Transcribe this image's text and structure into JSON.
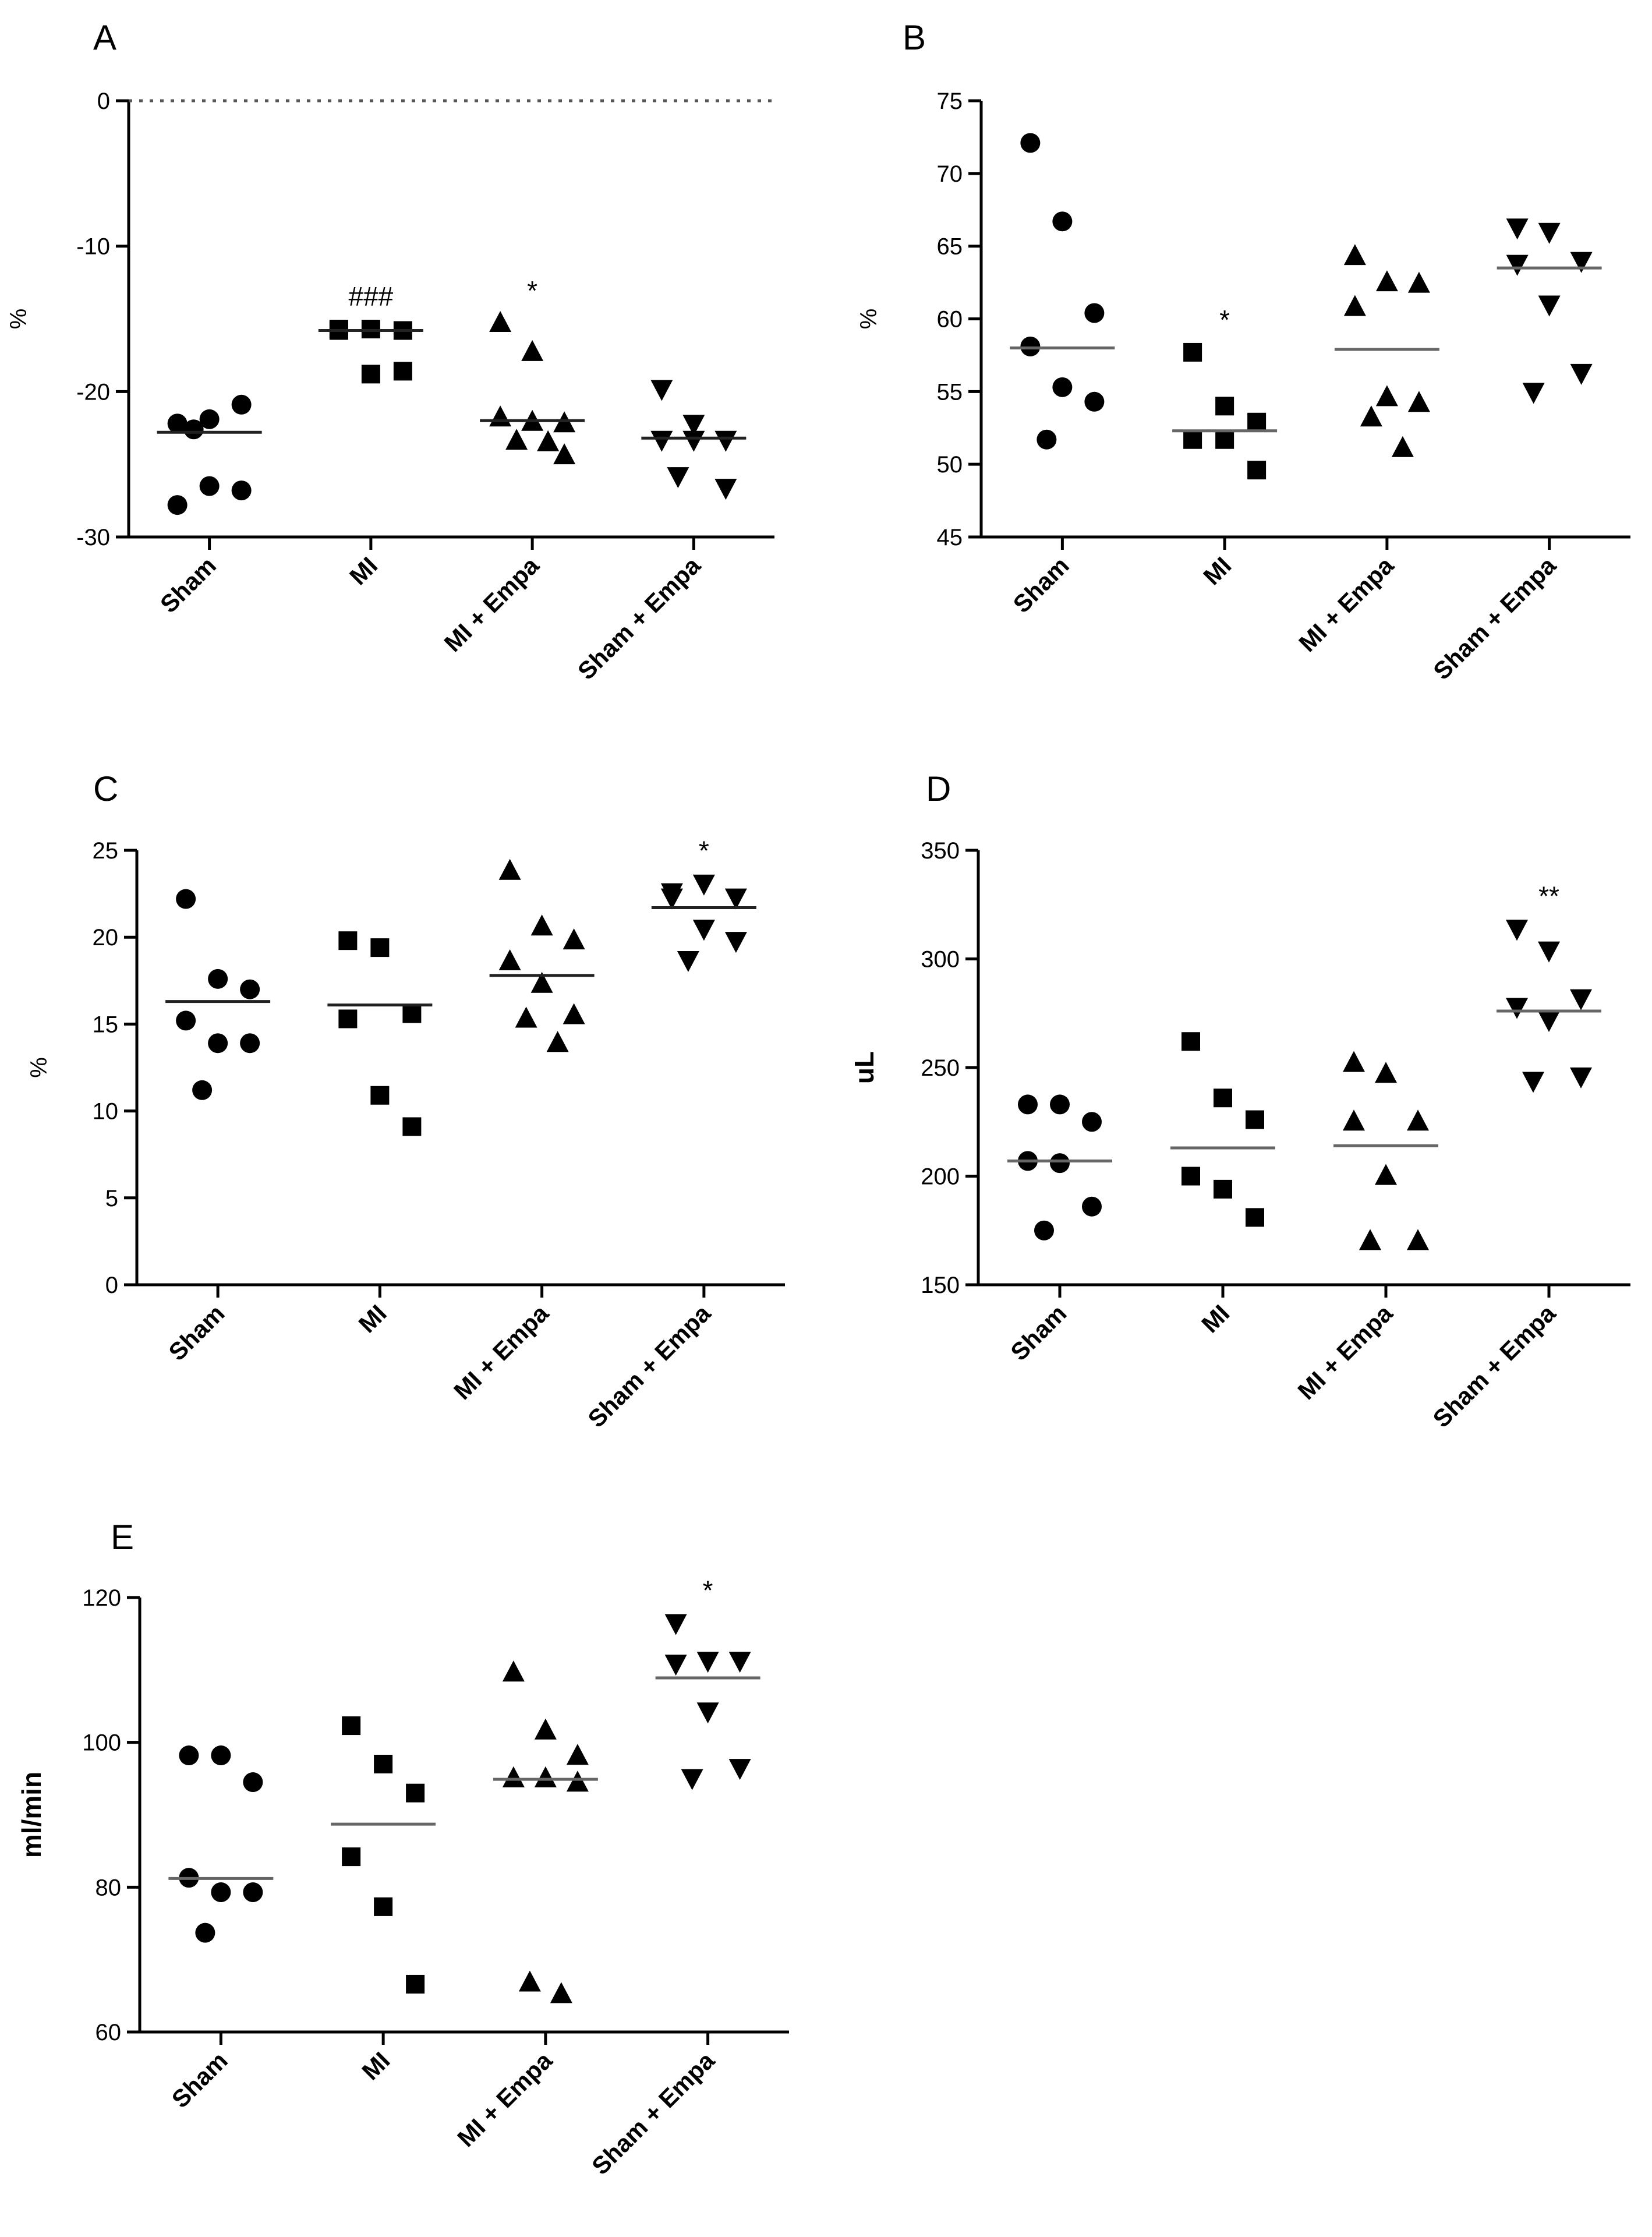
{
  "figure": {
    "categories": [
      "Sham",
      "MI",
      "MI + Empa",
      "Sham + Empa"
    ],
    "markers": [
      "circle",
      "square",
      "triangle-up",
      "triangle-down"
    ],
    "colors": {
      "ink": "#000000",
      "mean_line": "#666666",
      "dark_mean_line": "#222222"
    }
  },
  "chart_data": [
    {
      "panel": "A",
      "type": "scatter",
      "ylabel": "%",
      "ylim": [
        -30,
        0
      ],
      "yticks": [
        0,
        -10,
        -20,
        -30
      ],
      "zero_line": true,
      "series": [
        {
          "name": "Sham",
          "values": [
            -22.2,
            -21.9,
            -20.9,
            -27.8,
            -26.5,
            -26.8,
            -22.6
          ],
          "mean": -22.8,
          "sig": ""
        },
        {
          "name": "MI",
          "values": [
            -15.8,
            -15.7,
            -15.8,
            -15.7,
            -18.8,
            -18.6
          ],
          "mean": -15.8,
          "sig": "###"
        },
        {
          "name": "MI + Empa",
          "values": [
            -15.3,
            -17.3,
            -22.2,
            -21.8,
            -22.1,
            -24.4,
            -23.4,
            -23.5
          ],
          "mean": -22.0,
          "sig": "*"
        },
        {
          "name": "Sham + Empa",
          "values": [
            -19.8,
            -22.2,
            -23.3,
            -23.3,
            -23.3,
            -26.6,
            -25.8
          ],
          "mean": -23.2,
          "sig": ""
        }
      ]
    },
    {
      "panel": "B",
      "type": "scatter",
      "ylabel": "%",
      "ylim": [
        45,
        75
      ],
      "yticks": [
        45,
        50,
        55,
        60,
        65,
        70,
        75
      ],
      "series": [
        {
          "name": "Sham",
          "values": [
            72.1,
            66.7,
            60.4,
            58.1,
            55.3,
            54.3,
            51.7
          ],
          "mean": 58.0,
          "sig": ""
        },
        {
          "name": "MI",
          "values": [
            57.7,
            54.0,
            52.9,
            51.7,
            51.7,
            49.6
          ],
          "mean": 52.3,
          "sig": "*"
        },
        {
          "name": "MI + Empa",
          "values": [
            64.3,
            62.5,
            62.4,
            60.8,
            54.6,
            54.2,
            53.2,
            51.1
          ],
          "mean": 57.9,
          "sig": ""
        },
        {
          "name": "Sham + Empa",
          "values": [
            66.3,
            66.0,
            64.0,
            63.8,
            61.0,
            56.3,
            55.0
          ],
          "mean": 63.5,
          "sig": ""
        }
      ]
    },
    {
      "panel": "C",
      "type": "scatter",
      "ylabel": "%",
      "ylim": [
        0,
        25
      ],
      "yticks": [
        0,
        5,
        10,
        15,
        20,
        25
      ],
      "series": [
        {
          "name": "Sham",
          "values": [
            22.2,
            17.6,
            17.0,
            15.2,
            13.9,
            13.9,
            11.2
          ],
          "mean": 16.3,
          "sig": ""
        },
        {
          "name": "MI",
          "values": [
            19.8,
            19.4,
            15.6,
            15.3,
            10.9,
            9.1
          ],
          "mean": 16.1,
          "sig": ""
        },
        {
          "name": "MI + Empa",
          "values": [
            23.8,
            20.6,
            19.8,
            18.6,
            17.3,
            15.5,
            15.3,
            13.9
          ],
          "mean": 17.8,
          "sig": ""
        },
        {
          "name": "Sham + Empa",
          "values": [
            22.6,
            23.1,
            22.3,
            22.3,
            20.5,
            19.8,
            18.7
          ],
          "mean": 21.7,
          "sig": "*"
        }
      ]
    },
    {
      "panel": "D",
      "type": "scatter",
      "ylabel": "uL",
      "ylim": [
        150,
        350
      ],
      "yticks": [
        150,
        200,
        250,
        300,
        350
      ],
      "series": [
        {
          "name": "Sham",
          "values": [
            233,
            233,
            225,
            207,
            206,
            186,
            175
          ],
          "mean": 207,
          "sig": ""
        },
        {
          "name": "MI",
          "values": [
            262,
            236,
            226,
            200,
            194,
            181
          ],
          "mean": 213,
          "sig": ""
        },
        {
          "name": "MI + Empa",
          "values": [
            252,
            247,
            225,
            225,
            200,
            170,
            170
          ],
          "mean": 214,
          "sig": ""
        },
        {
          "name": "Sham + Empa",
          "values": [
            314,
            304,
            282,
            278,
            272,
            246,
            244
          ],
          "mean": 276,
          "sig": "**"
        }
      ]
    },
    {
      "panel": "E",
      "type": "scatter",
      "ylabel": "ml/min",
      "ylim": [
        60,
        120
      ],
      "yticks": [
        60,
        80,
        100,
        120
      ],
      "series": [
        {
          "name": "Sham",
          "values": [
            98.2,
            98.2,
            94.5,
            81.3,
            79.3,
            79.3,
            73.7
          ],
          "mean": 81.2,
          "sig": ""
        },
        {
          "name": "MI",
          "values": [
            102.3,
            97.0,
            93.0,
            84.2,
            77.3,
            66.6
          ],
          "mean": 88.7,
          "sig": ""
        },
        {
          "name": "MI + Empa",
          "values": [
            109.6,
            101.6,
            98.1,
            95.0,
            95.0,
            94.4,
            66.8,
            65.2
          ],
          "mean": 94.9,
          "sig": ""
        },
        {
          "name": "Sham + Empa",
          "values": [
            116.5,
            111.3,
            111.3,
            110.9,
            104.3,
            96.5,
            95.1
          ],
          "mean": 108.9,
          "sig": "*"
        }
      ]
    }
  ]
}
